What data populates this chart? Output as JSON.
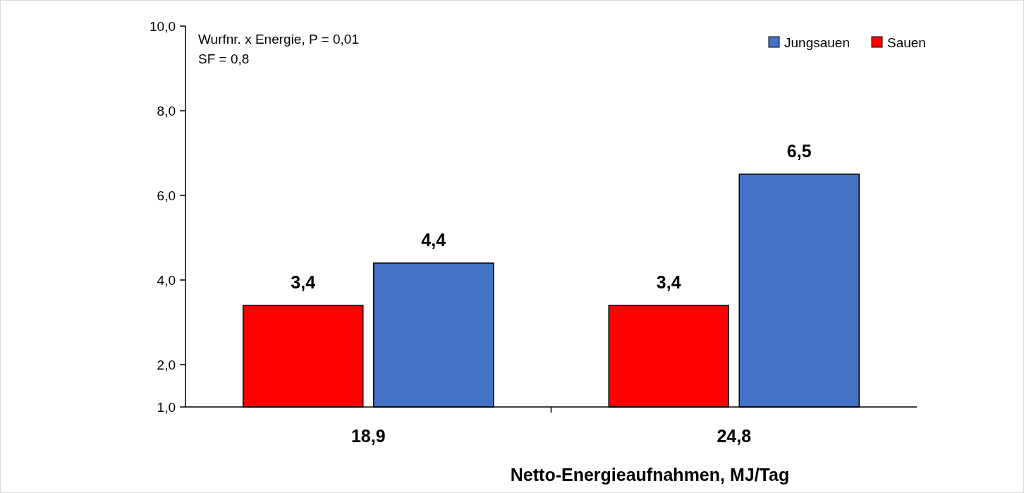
{
  "chart_data": {
    "type": "bar",
    "xlabel": "Netto-Energieaufnahmen, MJ/Tag",
    "categories": [
      "18,9",
      "24,8"
    ],
    "series": [
      {
        "name": "Sauen",
        "color": "#ff0000",
        "values": [
          3.4,
          3.4
        ],
        "value_labels": [
          "3,4",
          "3,4"
        ]
      },
      {
        "name": "Jungsauen",
        "color": "#4472c4",
        "values": [
          4.4,
          6.5
        ],
        "value_labels": [
          "4,4",
          "6,5"
        ]
      }
    ],
    "ylim": [
      1,
      10
    ],
    "yticks": [
      {
        "value": 1,
        "label": "1,0"
      },
      {
        "value": 2,
        "label": "2,0"
      },
      {
        "value": 4,
        "label": "4,0"
      },
      {
        "value": 6,
        "label": "6,0"
      },
      {
        "value": 8,
        "label": "8,0"
      },
      {
        "value": 10,
        "label": "10,0"
      }
    ],
    "annotations": [
      "Wurfnr. x Energie, P = 0,01",
      "SF = 0,8"
    ],
    "legend": "top right",
    "grid": false
  }
}
